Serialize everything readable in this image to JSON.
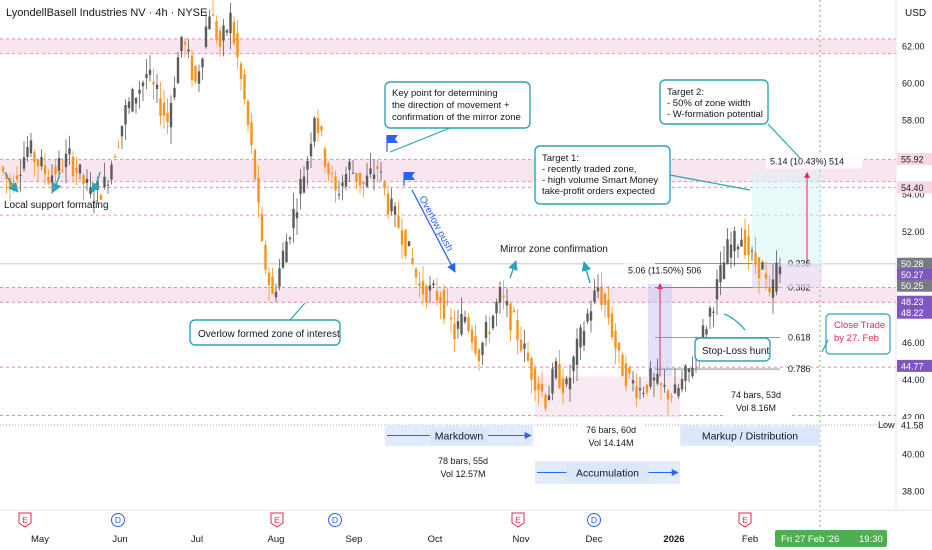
{
  "title": "LyondellBasell Industries NV · 4h · NYSE",
  "currency": "USD",
  "colors": {
    "up": "#5b5b5b",
    "down": "#f7931a",
    "zone_pink": "#f3d3e6",
    "zone_line": "#e0456b",
    "annotation": "#2aa5b8",
    "label_blue": "#2962ff",
    "markup_box": "#dbe6fb",
    "target_box": "#d6f4f6",
    "red_text": "#e5284f",
    "green_badge": "#4caf50"
  },
  "chart_data": {
    "type": "candlestick",
    "ylim": [
      37,
      64.5
    ],
    "y_ticks": [
      38,
      40,
      42,
      44,
      46,
      48,
      50,
      52,
      54,
      56,
      58,
      60,
      62
    ],
    "x_labels": [
      "May",
      "Jun",
      "Jul",
      "Aug",
      "Sep",
      "Oct",
      "Nov",
      "Dec",
      "2026",
      "Feb"
    ],
    "event_markers": [
      {
        "type": "E",
        "month": "May"
      },
      {
        "type": "D",
        "month": "Jun"
      },
      {
        "type": "E",
        "month": "Aug"
      },
      {
        "type": "D",
        "month": "Sep"
      },
      {
        "type": "E",
        "month": "Nov"
      },
      {
        "type": "D",
        "month": "Dec"
      },
      {
        "type": "E",
        "month": "Feb"
      }
    ],
    "price_path": [
      [
        0,
        55.5
      ],
      [
        3,
        54.5
      ],
      [
        8,
        56.5
      ],
      [
        14,
        55
      ],
      [
        20,
        56
      ],
      [
        26,
        54
      ],
      [
        30,
        54.5
      ],
      [
        36,
        58.5
      ],
      [
        42,
        60.5
      ],
      [
        48,
        58
      ],
      [
        52,
        62.5
      ],
      [
        56,
        60
      ],
      [
        60,
        64
      ],
      [
        63,
        62
      ],
      [
        66,
        63.5
      ],
      [
        70,
        59
      ],
      [
        73,
        55
      ],
      [
        75,
        51
      ],
      [
        78,
        48.5
      ],
      [
        80,
        50
      ],
      [
        84,
        53
      ],
      [
        88,
        56
      ],
      [
        90,
        58.5
      ],
      [
        93,
        56
      ],
      [
        96,
        54
      ],
      [
        100,
        55.5
      ],
      [
        104,
        54.5
      ],
      [
        108,
        55.5
      ],
      [
        111,
        53.5
      ],
      [
        115,
        52
      ],
      [
        120,
        49
      ],
      [
        126,
        48.5
      ],
      [
        130,
        46.5
      ],
      [
        133,
        47.5
      ],
      [
        137,
        45.5
      ],
      [
        140,
        47
      ],
      [
        143,
        48.5
      ],
      [
        147,
        47
      ],
      [
        152,
        44.5
      ],
      [
        156,
        43
      ],
      [
        159,
        44.5
      ],
      [
        162,
        43.5
      ],
      [
        164,
        45
      ],
      [
        168,
        47.5
      ],
      [
        171,
        49
      ],
      [
        174,
        47.5
      ],
      [
        177,
        45
      ],
      [
        180,
        44
      ],
      [
        183,
        43.5
      ],
      [
        186,
        44
      ],
      [
        189,
        43.5
      ],
      [
        193,
        43.2
      ],
      [
        197,
        44.5
      ],
      [
        201,
        46.5
      ],
      [
        205,
        49
      ],
      [
        208,
        51
      ],
      [
        212,
        51.8
      ],
      [
        215,
        50.5
      ],
      [
        218,
        50
      ],
      [
        220,
        48.2
      ],
      [
        222,
        50
      ]
    ],
    "last_price": 50.27,
    "last_candle_index": 222,
    "price_labels": [
      {
        "value": 55.92,
        "text": "55.92",
        "style": "pink"
      },
      {
        "value": 54.4,
        "text": "54.40",
        "style": "pink"
      },
      {
        "value": 50.28,
        "text": "50.28",
        "style": "gray"
      },
      {
        "value": 50.27,
        "text": "50.27",
        "style": "purple"
      },
      {
        "value": 50.25,
        "text": "50.25",
        "style": "gray"
      },
      {
        "value": 48.23,
        "text": "48.23",
        "style": "purple"
      },
      {
        "value": 48.22,
        "text": "48.22",
        "style": "purple"
      },
      {
        "value": 44.77,
        "text": "44.77",
        "style": "purple"
      },
      {
        "value": 41.58,
        "text": "41.58",
        "style": "white"
      }
    ],
    "low_label": "Low",
    "low_value": 41.58,
    "current_date": "Fri 27 Feb '26",
    "current_time": "19:30",
    "zones": [
      {
        "from": 61.6,
        "to": 62.4,
        "type": "pink"
      },
      {
        "from": 54.7,
        "to": 55.9,
        "type": "pink"
      },
      {
        "from": 48.2,
        "to": 49.0,
        "type": "pink"
      }
    ],
    "dashed_levels": [
      62.4,
      61.6,
      55.9,
      54.7,
      54.4,
      52.9,
      49.0,
      48.2,
      44.7,
      42.1
    ],
    "fib_levels": [
      {
        "ratio": "0.236",
        "value": 50.3
      },
      {
        "ratio": "0.382",
        "value": 49.0
      },
      {
        "ratio": "0.618",
        "value": 46.3
      },
      {
        "ratio": "0.786",
        "value": 44.6
      }
    ],
    "measure_boxes": [
      {
        "label": "5.06 (11.50%) 506",
        "from": 44.2,
        "to": 49.2
      },
      {
        "label": "5.14 (10.43%) 514",
        "from": 50.1,
        "to": 55.2
      }
    ],
    "phase_labels": [
      "Markdown",
      "Accumulation",
      "Markup / Distribution"
    ],
    "stats": [
      {
        "bars": "78 bars, 55d",
        "vol": "Vol 12.57M"
      },
      {
        "bars": "76 bars, 60d",
        "vol": "Vol 14.14M"
      },
      {
        "bars": "74 bars, 53d",
        "vol": "Vol 8.16M"
      }
    ],
    "annotations": {
      "local_support": "Local support formating",
      "overlow_zone": "Overlow formed zone of interest",
      "key_point": [
        "Key point for determining",
        "the direction of movement +",
        "confirmation of the mirror zone"
      ],
      "overlow_push": "Overlow push",
      "mirror": "Mirror zone confirmation",
      "target1": [
        "Target 1:",
        "- recently traded zone,",
        "- high volume Smart Money",
        "  take-profit orders expected"
      ],
      "target2": [
        "Target 2:",
        "- 50% of zone width",
        "- W-formation potential"
      ],
      "stop_loss": "Stop-Loss hunt",
      "close_trade": [
        "Close Trade",
        "by 27. Feb"
      ]
    }
  }
}
